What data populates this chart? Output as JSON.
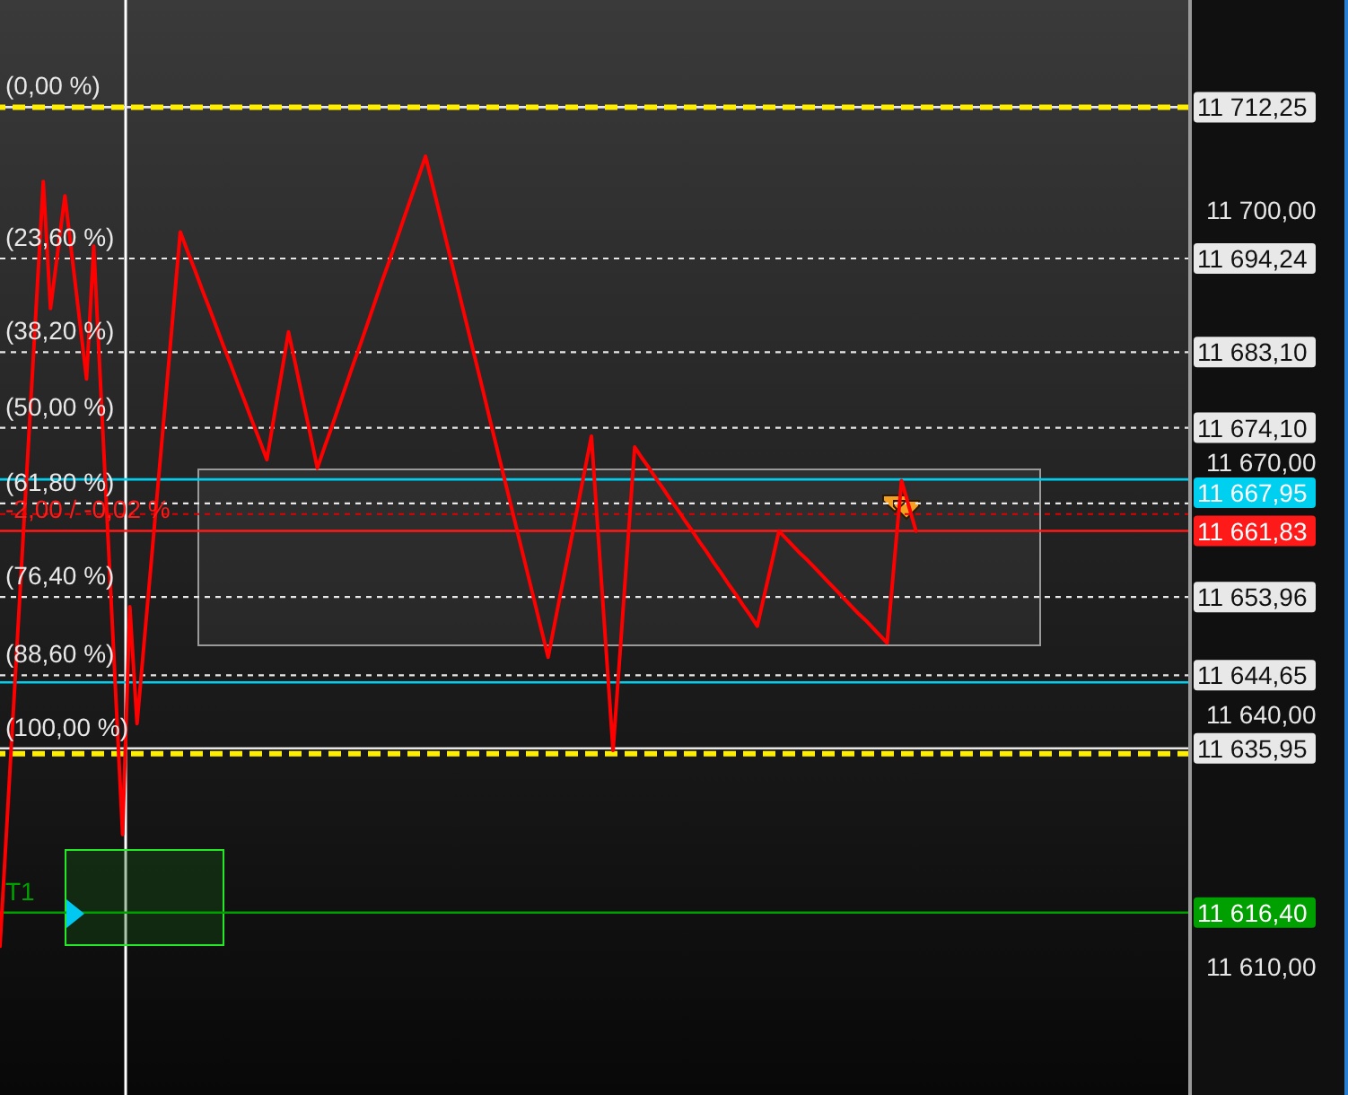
{
  "chart_data": {
    "type": "line",
    "categories": [
      null,
      null,
      null,
      null,
      null,
      null,
      null,
      null,
      null,
      null,
      null,
      null,
      null,
      null,
      null,
      null,
      null,
      null,
      null,
      null,
      null,
      null,
      null,
      null,
      null,
      null,
      null,
      null,
      null,
      null,
      null,
      null,
      null,
      null,
      null,
      null,
      null,
      null,
      null,
      null,
      null,
      null,
      null,
      null,
      null,
      null,
      null,
      null,
      null,
      null,
      null,
      null,
      null,
      null,
      null,
      null,
      null,
      null,
      null,
      null,
      null,
      null,
      null,
      null,
      null,
      null,
      null,
      null,
      null,
      null,
      null,
      null,
      null,
      null,
      null,
      null,
      null,
      null,
      null,
      null,
      null,
      null,
      null,
      null,
      null,
      null,
      null,
      null,
      null,
      null,
      null,
      null,
      null,
      null,
      null,
      null,
      null,
      null,
      null,
      null,
      null,
      null,
      null,
      null,
      null,
      null,
      null,
      null,
      null,
      null,
      null,
      null,
      null,
      null,
      null,
      null,
      null,
      null,
      null,
      null,
      null,
      null,
      null,
      null,
      null,
      null,
      null,
      null,
      null,
      null,
      null,
      null,
      null,
      null,
      null,
      null,
      null,
      null,
      null,
      null,
      null,
      null,
      null,
      null,
      null,
      null,
      null,
      null,
      null,
      null,
      null,
      null,
      null,
      null,
      null,
      null,
      null,
      null,
      null,
      null,
      null,
      null,
      null,
      null,
      null,
      null
    ],
    "values": [
      11612.4,
      11627.6,
      11642.7,
      11657.9,
      11673.1,
      11688.2,
      11703.4,
      11688.3,
      11695.0,
      11701.7,
      11694.4,
      11687.2,
      11679.9,
      11695.7,
      11678.2,
      11660.7,
      11643.2,
      11625.7,
      11652.8,
      11638.9,
      11648.7,
      11658.4,
      11668.2,
      11677.9,
      11687.7,
      11697.4,
      11695.1,
      11692.9,
      11690.6,
      11688.4,
      11686.1,
      11683.8,
      11681.6,
      11679.3,
      11677.1,
      11674.8,
      11672.6,
      11670.3,
      11675.4,
      11680.4,
      11685.5,
      11681.5,
      11677.4,
      11673.4,
      11669.3,
      11671.8,
      11674.2,
      11676.7,
      11679.2,
      11681.7,
      11684.1,
      11686.6,
      11689.1,
      11691.6,
      11694.0,
      11696.5,
      11699.0,
      11701.5,
      11703.9,
      11706.4,
      11702.9,
      11699.4,
      11695.9,
      11692.4,
      11688.9,
      11685.4,
      11681.9,
      11678.4,
      11674.8,
      11671.3,
      11667.8,
      11664.3,
      11660.8,
      11657.3,
      11653.8,
      11650.3,
      11646.8,
      11651.2,
      11655.6,
      11659.9,
      11664.3,
      11668.7,
      11673.1,
      11660.6,
      11648.2,
      11635.7,
      11647.7,
      11659.8,
      11671.8,
      11670.5,
      11669.3,
      11668.0,
      11666.8,
      11665.5,
      11664.3,
      11663.0,
      11661.8,
      11660.5,
      11659.3,
      11658.0,
      11656.8,
      11655.5,
      11654.3,
      11653.0,
      11651.8,
      11650.5,
      11654.3,
      11658.0,
      11661.8,
      11660.9,
      11660.0,
      11659.1,
      11658.3,
      11657.4,
      11656.5,
      11655.6,
      11654.7,
      11653.8,
      11652.9,
      11652.0,
      11651.2,
      11650.3,
      11649.4,
      11648.5,
      11658.2,
      11667.8,
      11664.8,
      11661.8,
      null,
      null,
      null,
      null,
      null,
      null,
      null,
      null,
      null,
      null,
      null,
      null,
      null,
      null,
      null,
      null,
      null,
      null,
      null,
      null,
      null,
      null,
      null,
      null,
      null,
      null,
      null,
      null,
      null,
      null,
      null,
      null,
      null,
      null,
      null,
      null,
      null,
      null
    ],
    "color": "#ff0000",
    "marker": "none",
    "tick_labels": "y",
    "ylim": [
      11594.7,
      11725.0
    ],
    "yticks": [
      {
        "value": 11610,
        "label": "11 610,00"
      },
      {
        "value": 11640,
        "label": "11 640,00"
      },
      {
        "value": 11670,
        "label": "11 670,00"
      },
      {
        "value": 11700,
        "label": "11 700,00"
      }
    ],
    "ref_lines": [
      {
        "axis": "y",
        "value": 11712.25,
        "label": "11 712,25",
        "color": "#e8e8e8",
        "line_style": "solid"
      },
      {
        "axis": "y",
        "value": 11712.25,
        "color": "#ffee00",
        "line_style": "dashed"
      },
      {
        "axis": "y",
        "value": 11694.24,
        "label": "11 694,24",
        "color": "#e8e8e8",
        "line_style": "dotted"
      },
      {
        "axis": "y",
        "value": 11683.1,
        "label": "11 683,10",
        "color": "#e8e8e8",
        "line_style": "dotted"
      },
      {
        "axis": "y",
        "value": 11674.1,
        "label": "11 674,10",
        "color": "#e8e8e8",
        "line_style": "dotted"
      },
      {
        "axis": "y",
        "value": 11667.95,
        "label": "11 667,95",
        "color": "#00d0f0",
        "line_style": "solid"
      },
      {
        "axis": "y",
        "value": 11665.1,
        "color": "#e8e8e8",
        "line_style": "dotted"
      },
      {
        "axis": "y",
        "value": 11663.83,
        "color": "#e00000",
        "line_style": "dotted"
      },
      {
        "axis": "y",
        "value": 11661.83,
        "label": "11 661,83",
        "color": "#ff1a1a",
        "line_style": "solid"
      },
      {
        "axis": "y",
        "value": 11653.96,
        "label": "11 653,96",
        "color": "#e8e8e8",
        "line_style": "dotted"
      },
      {
        "axis": "y",
        "value": 11644.65,
        "label": "11 644,65",
        "color": "#e8e8e8",
        "line_style": "dotted"
      },
      {
        "axis": "y",
        "value": 11643.8,
        "color": "#00d0f0",
        "line_style": "solid"
      },
      {
        "axis": "y",
        "value": 11635.95,
        "label": "11 635,95",
        "color": "#e8e8e8",
        "line_style": "solid"
      },
      {
        "axis": "y",
        "value": 11635.3,
        "color": "#ffee00",
        "line_style": "dashed"
      },
      {
        "axis": "y",
        "value": 11616.4,
        "label": "11 616,40",
        "color": "#00a000",
        "line_style": "solid"
      }
    ],
    "annotations": [
      {
        "text": "(0,00 %)",
        "y": 11712.25
      },
      {
        "text": "(23,60 %)",
        "y": 11694.24
      },
      {
        "text": "(38,20 %)",
        "y": 11683.1
      },
      {
        "text": "(50,00 %)",
        "y": 11674.1
      },
      {
        "text": "(61,80 %)",
        "y": 11665.1
      },
      {
        "text": "-2,00 / -0,02 %",
        "y": 11661.83
      },
      {
        "text": "(76,40 %)",
        "y": 11653.96
      },
      {
        "text": "(88,60 %)",
        "y": 11644.65
      },
      {
        "text": "(100,00 %)",
        "y": 11635.95
      },
      {
        "text": "T1",
        "y": 11616.4
      }
    ]
  }
}
